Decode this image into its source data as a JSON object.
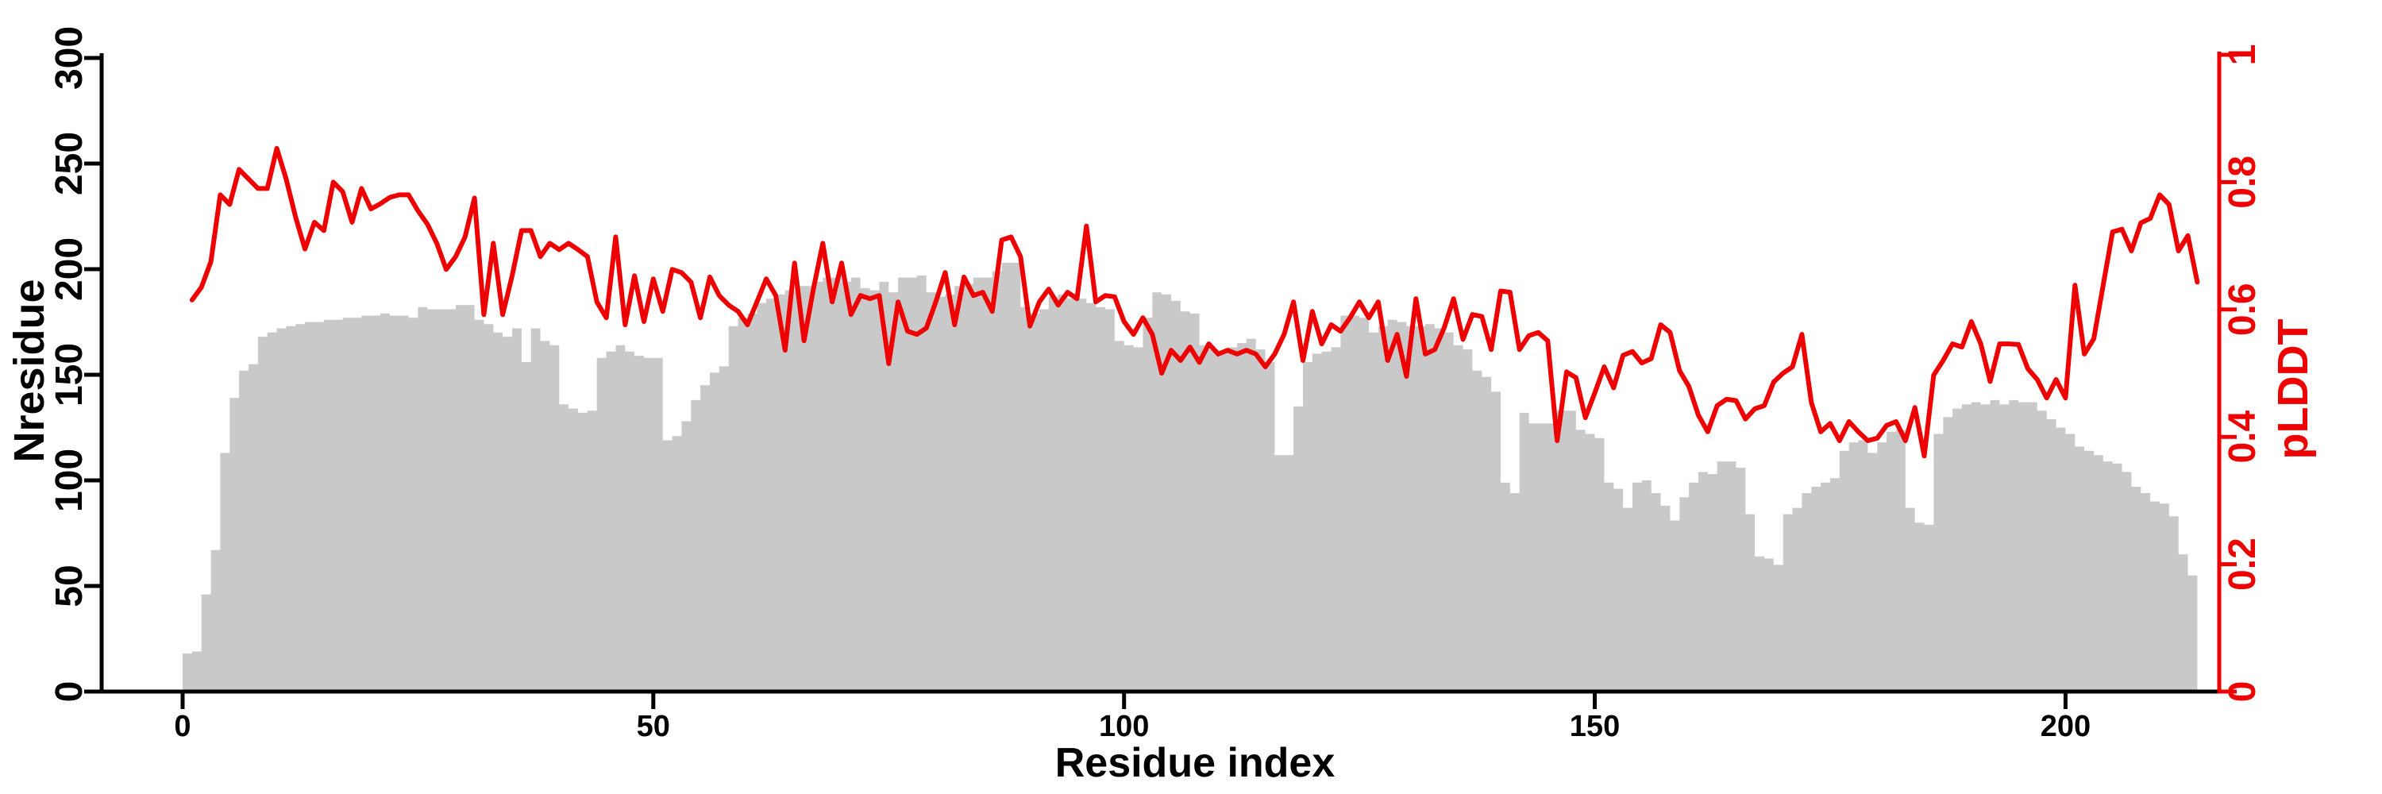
{
  "chart_data": {
    "type": "bar+line",
    "title": "",
    "grid": false,
    "legend": null,
    "background_color": "#ffffff",
    "x_axis": {
      "label": "Residue index",
      "ticks": [
        0,
        50,
        100,
        150,
        200
      ],
      "tick_labels": [
        "0",
        "50",
        "100",
        "150",
        "200"
      ],
      "range": [
        0,
        217
      ],
      "color": "#000000"
    },
    "left_y_axis": {
      "label": "Nresidue",
      "ticks": [
        0,
        50,
        100,
        150,
        200,
        250,
        300
      ],
      "tick_labels": [
        "0",
        "50",
        "100",
        "150",
        "200",
        "250",
        "300"
      ],
      "range": [
        0,
        300
      ],
      "color": "#000000"
    },
    "right_y_axis": {
      "label": "pLDDT",
      "ticks": [
        0,
        0.2,
        0.4,
        0.6,
        0.8,
        1
      ],
      "tick_labels": [
        "0",
        "0.2",
        "0.4",
        "0.6",
        "0.8",
        "1"
      ],
      "range": [
        0,
        1
      ],
      "color": "#ee0000"
    },
    "bars": {
      "name": "Nresidue histogram",
      "color": "#c9c9c9",
      "start_residue": 0,
      "values": [
        18,
        19,
        46,
        67,
        113,
        139,
        152,
        155,
        168,
        170,
        172,
        173,
        174,
        175,
        175,
        176,
        176,
        177,
        177,
        178,
        178,
        179,
        178,
        178,
        177,
        182,
        181,
        181,
        181,
        183,
        183,
        176,
        174,
        170,
        168,
        172,
        156,
        172,
        166,
        164,
        136,
        134,
        132,
        133,
        158,
        161,
        164,
        161,
        159,
        158,
        158,
        119,
        121,
        128,
        138,
        145,
        151,
        154,
        173,
        177,
        179,
        184,
        186,
        188,
        190,
        192,
        192,
        194,
        196,
        196,
        194,
        196,
        191,
        190,
        194,
        189,
        196,
        196,
        197,
        189,
        187,
        188,
        192,
        193,
        196,
        196,
        199,
        203,
        203,
        182,
        179,
        181,
        187,
        188,
        186,
        186,
        184,
        182,
        181,
        166,
        164,
        163,
        177,
        189,
        188,
        185,
        180,
        179,
        164,
        162,
        161,
        163,
        165,
        167,
        162,
        156,
        112,
        112,
        135,
        156,
        160,
        161,
        163,
        178,
        178,
        177,
        170,
        173,
        176,
        175,
        173,
        173,
        174,
        172,
        170,
        164,
        162,
        152,
        149,
        142,
        99,
        94,
        132,
        127,
        127,
        127,
        133,
        133,
        124,
        122,
        120,
        99,
        96,
        87,
        99,
        100,
        94,
        88,
        81,
        92,
        99,
        104,
        103,
        109,
        109,
        106,
        84,
        64,
        63,
        60,
        84,
        87,
        94,
        97,
        99,
        101,
        114,
        118,
        119,
        113,
        118,
        123,
        124,
        87,
        80,
        79,
        122,
        130,
        134,
        136,
        137,
        136,
        138,
        136,
        138,
        137,
        137,
        133,
        129,
        125,
        122,
        116,
        114,
        112,
        109,
        108,
        104,
        97,
        94,
        90,
        89,
        83,
        65,
        55
      ]
    },
    "line": {
      "name": "pLDDT",
      "color": "#ee0000",
      "start_residue": 1,
      "values": [
        0.615,
        0.635,
        0.675,
        0.78,
        0.765,
        0.82,
        0.805,
        0.79,
        0.79,
        0.853,
        0.805,
        0.745,
        0.695,
        0.737,
        0.724,
        0.8,
        0.785,
        0.737,
        0.79,
        0.758,
        0.766,
        0.776,
        0.78,
        0.78,
        0.755,
        0.734,
        0.704,
        0.663,
        0.683,
        0.714,
        0.775,
        0.592,
        0.704,
        0.592,
        0.653,
        0.724,
        0.724,
        0.683,
        0.704,
        0.694,
        0.704,
        0.694,
        0.683,
        0.612,
        0.587,
        0.714,
        0.576,
        0.653,
        0.581,
        0.648,
        0.597,
        0.663,
        0.658,
        0.643,
        0.587,
        0.651,
        0.622,
        0.607,
        0.597,
        0.576,
        0.612,
        0.648,
        0.622,
        0.536,
        0.673,
        0.551,
        0.632,
        0.704,
        0.612,
        0.673,
        0.592,
        0.622,
        0.617,
        0.622,
        0.515,
        0.612,
        0.566,
        0.561,
        0.571,
        0.612,
        0.658,
        0.576,
        0.651,
        0.622,
        0.627,
        0.597,
        0.709,
        0.714,
        0.683,
        0.574,
        0.612,
        0.632,
        0.607,
        0.627,
        0.617,
        0.731,
        0.612,
        0.622,
        0.62,
        0.581,
        0.561,
        0.587,
        0.561,
        0.5,
        0.536,
        0.52,
        0.541,
        0.517,
        0.546,
        0.53,
        0.536,
        0.53,
        0.536,
        0.53,
        0.51,
        0.53,
        0.561,
        0.612,
        0.52,
        0.597,
        0.546,
        0.576,
        0.566,
        0.587,
        0.612,
        0.587,
        0.612,
        0.52,
        0.561,
        0.495,
        0.617,
        0.53,
        0.537,
        0.571,
        0.617,
        0.553,
        0.592,
        0.589,
        0.537,
        0.629,
        0.627,
        0.537,
        0.559,
        0.564,
        0.551,
        0.394,
        0.502,
        0.493,
        0.43,
        0.469,
        0.51,
        0.477,
        0.528,
        0.534,
        0.516,
        0.523,
        0.576,
        0.564,
        0.504,
        0.479,
        0.434,
        0.408,
        0.449,
        0.459,
        0.457,
        0.428,
        0.444,
        0.449,
        0.486,
        0.5,
        0.51,
        0.561,
        0.454,
        0.408,
        0.421,
        0.394,
        0.424,
        0.408,
        0.394,
        0.398,
        0.418,
        0.424,
        0.394,
        0.446,
        0.37,
        0.497,
        0.52,
        0.546,
        0.541,
        0.581,
        0.546,
        0.487,
        0.546,
        0.546,
        0.545,
        0.507,
        0.49,
        0.461,
        0.49,
        0.461,
        0.638,
        0.53,
        0.554,
        0.638,
        0.722,
        0.726,
        0.692,
        0.736,
        0.743,
        0.78,
        0.765,
        0.692,
        0.716,
        0.643
      ]
    }
  }
}
